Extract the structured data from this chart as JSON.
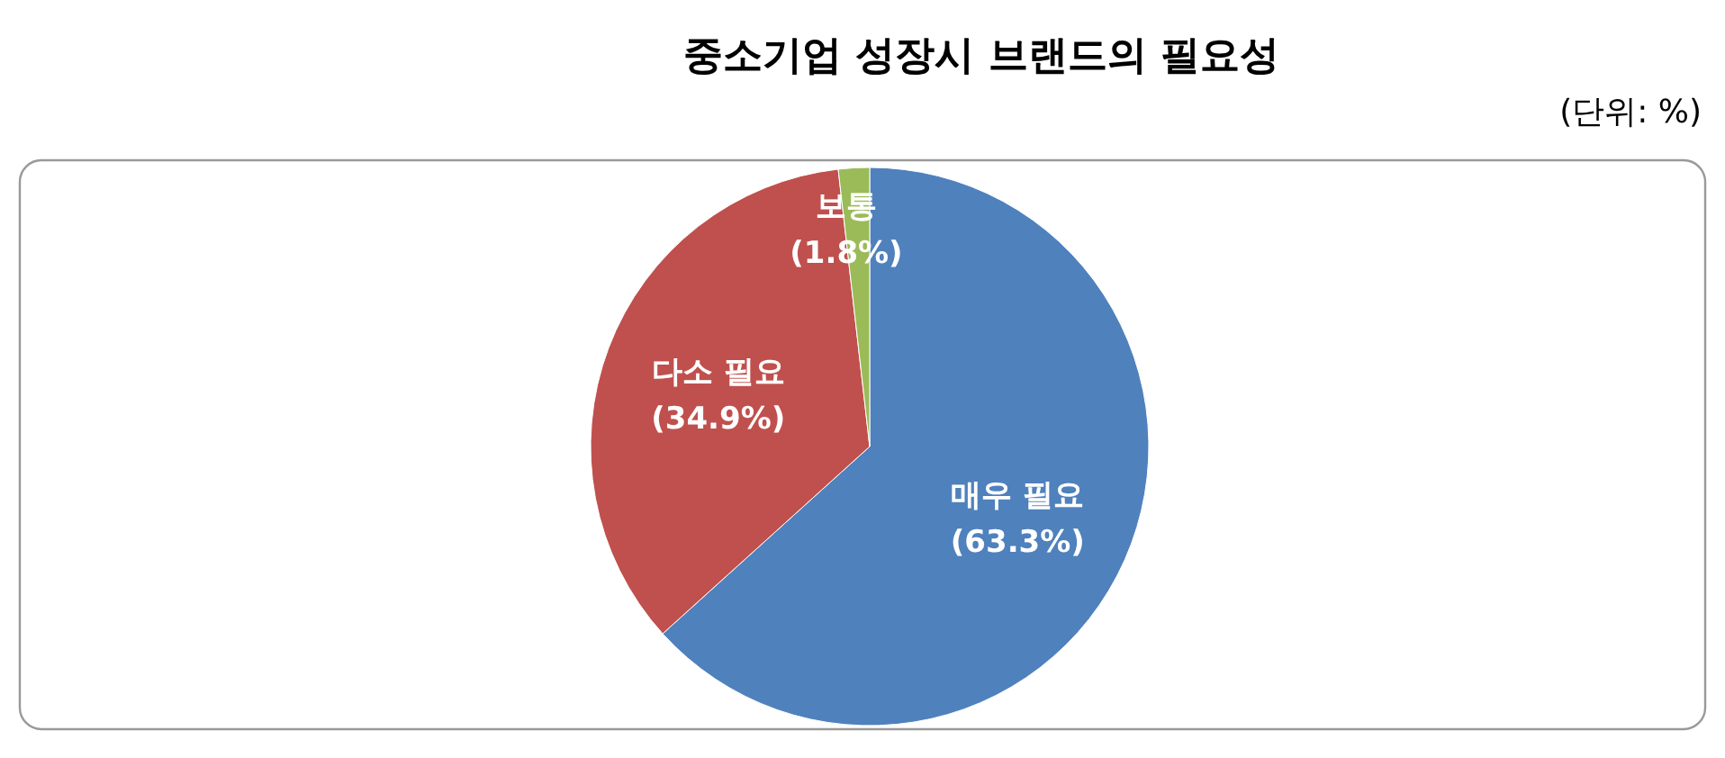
{
  "chart_data": {
    "type": "pie",
    "title": "중소기업 성장시 브랜드의 필요성",
    "annotations": [
      "(단위: %)"
    ],
    "categories": [
      "매우 필요",
      "다소 필요",
      "보통"
    ],
    "values": [
      63.3,
      34.9,
      1.8
    ],
    "colors": [
      "#4f81bd",
      "#c0504d",
      "#9bbb59"
    ],
    "value_labels": [
      "(63.3%)",
      "(34.9%)",
      "(1.8%)"
    ]
  }
}
